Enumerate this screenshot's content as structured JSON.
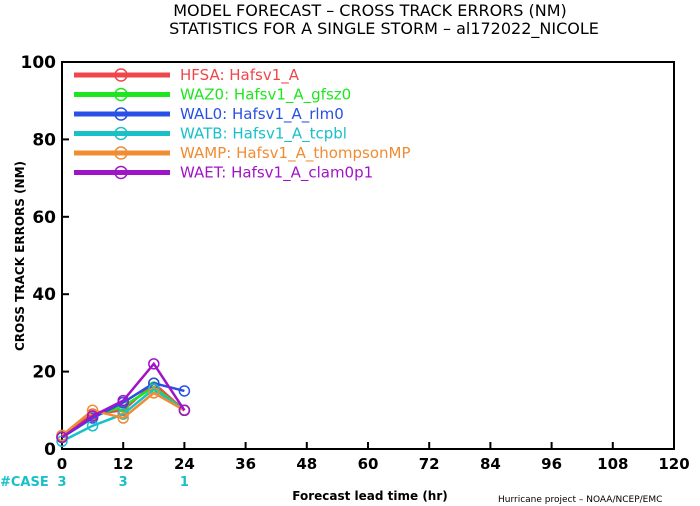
{
  "title_line1": "MODEL FORECAST – CROSS TRACK ERRORS (NM)",
  "title_line2": "STATISTICS FOR A SINGLE STORM – al172022_NICOLE",
  "credit": "Hurricane project – NOAA/NCEP/EMC",
  "case_label": "#CASE",
  "case_counts": [
    {
      "x": 0,
      "label": "3"
    },
    {
      "x": 12,
      "label": "3"
    },
    {
      "x": 24,
      "label": "1"
    }
  ],
  "colors": {
    "case_label": "#19c0c8"
  },
  "chart_data": {
    "type": "line",
    "title": "MODEL FORECAST – CROSS TRACK ERRORS (NM)",
    "subtitle": "STATISTICS FOR A SINGLE STORM – al172022_NICOLE",
    "xlabel": "Forecast lead time (hr)",
    "ylabel": "CROSS TRACK ERRORS (NM)",
    "xlim": [
      0,
      120
    ],
    "ylim": [
      0,
      100
    ],
    "xticks": [
      0,
      12,
      24,
      36,
      48,
      60,
      72,
      84,
      96,
      108,
      120
    ],
    "yticks": [
      0,
      20,
      40,
      60,
      80,
      100
    ],
    "grid": false,
    "legend_position": "top-left",
    "series": [
      {
        "name": "HFSA:",
        "desc": "Hafsv1_A",
        "color": "#f0464b",
        "points": [
          [
            0,
            3.5
          ],
          [
            6,
            9
          ],
          [
            12,
            10
          ],
          [
            18,
            17
          ],
          [
            24,
            10
          ]
        ]
      },
      {
        "name": "WAZ0:",
        "desc": "Hafsv1_A_gfsz0",
        "color": "#1ee61e",
        "points": [
          [
            0,
            3
          ],
          [
            6,
            8.5
          ],
          [
            12,
            11
          ],
          [
            18,
            16
          ],
          [
            24,
            10
          ]
        ]
      },
      {
        "name": "WAL0:",
        "desc": "Hafsv1_A_rlm0",
        "color": "#2850e6",
        "points": [
          [
            0,
            3
          ],
          [
            6,
            8
          ],
          [
            12,
            12
          ],
          [
            18,
            17
          ],
          [
            24,
            15
          ]
        ]
      },
      {
        "name": "WATB:",
        "desc": "Hafsv1_A_tcpbl",
        "color": "#19c0c8",
        "points": [
          [
            0,
            2
          ],
          [
            6,
            6
          ],
          [
            12,
            9
          ],
          [
            18,
            15.5
          ],
          [
            24,
            10
          ]
        ]
      },
      {
        "name": "WAMP:",
        "desc": "Hafsv1_A_thompsonMP",
        "color": "#f08c32",
        "points": [
          [
            0,
            3.5
          ],
          [
            6,
            10
          ],
          [
            12,
            8
          ],
          [
            18,
            14.5
          ],
          [
            24,
            10
          ]
        ]
      },
      {
        "name": "WAET:",
        "desc": "Hafsv1_A_clam0p1",
        "color": "#a014c8",
        "points": [
          [
            0,
            3
          ],
          [
            6,
            8.5
          ],
          [
            12,
            12.5
          ],
          [
            18,
            22
          ],
          [
            24,
            10
          ]
        ]
      }
    ]
  }
}
